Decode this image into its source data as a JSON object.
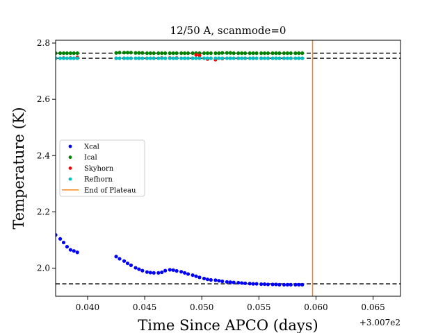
{
  "chart_data": {
    "type": "scatter",
    "title": "12/50 A, scanmode=0",
    "xlabel": "Time Since APCO (days)",
    "ylabel": "Temperature (K)",
    "x_offset_label": "+3.007e2",
    "xlim": [
      0.0372,
      0.0674
    ],
    "ylim": [
      1.9,
      2.81
    ],
    "x_ticks": [
      0.04,
      0.045,
      0.05,
      0.055,
      0.06,
      0.065
    ],
    "x_tick_labels": [
      "0.040",
      "0.045",
      "0.050",
      "0.055",
      "0.060",
      "0.065"
    ],
    "y_ticks": [
      2.0,
      2.2,
      2.4,
      2.6,
      2.8
    ],
    "y_tick_labels": [
      "2.0",
      "2.2",
      "2.4",
      "2.6",
      "2.8"
    ],
    "grid": false,
    "legend_position": "center-left",
    "series": [
      {
        "name": "Xcal",
        "color": "#0000ff",
        "points": [
          [
            0.0372,
            2.118
          ],
          [
            0.0376,
            2.104
          ],
          [
            0.0379,
            2.091
          ],
          [
            0.0382,
            2.076
          ],
          [
            0.0385,
            2.065
          ],
          [
            0.0388,
            2.061
          ],
          [
            0.0391,
            2.056
          ],
          [
            0.0425,
            2.041
          ],
          [
            0.0428,
            2.033
          ],
          [
            0.0432,
            2.025
          ],
          [
            0.0435,
            2.017
          ],
          [
            0.0438,
            2.01
          ],
          [
            0.0442,
            2.001
          ],
          [
            0.0445,
            1.996
          ],
          [
            0.0448,
            1.991
          ],
          [
            0.0452,
            1.986
          ],
          [
            0.0455,
            1.984
          ],
          [
            0.0458,
            1.983
          ],
          [
            0.0462,
            1.983
          ],
          [
            0.0465,
            1.985
          ],
          [
            0.0468,
            1.991
          ],
          [
            0.0472,
            1.994
          ],
          [
            0.0475,
            1.993
          ],
          [
            0.0478,
            1.99
          ],
          [
            0.0482,
            1.987
          ],
          [
            0.0485,
            1.983
          ],
          [
            0.0488,
            1.979
          ],
          [
            0.0492,
            1.975
          ],
          [
            0.0495,
            1.971
          ],
          [
            0.0498,
            1.967
          ],
          [
            0.0502,
            1.963
          ],
          [
            0.0505,
            1.96
          ],
          [
            0.0508,
            1.958
          ],
          [
            0.0512,
            1.957
          ],
          [
            0.0515,
            1.955
          ],
          [
            0.0518,
            1.953
          ],
          [
            0.0522,
            1.951
          ],
          [
            0.0525,
            1.95
          ],
          [
            0.0528,
            1.949
          ],
          [
            0.0532,
            1.948
          ],
          [
            0.0535,
            1.947
          ],
          [
            0.0538,
            1.946
          ],
          [
            0.0542,
            1.945
          ],
          [
            0.0545,
            1.944
          ],
          [
            0.0548,
            1.944
          ],
          [
            0.0552,
            1.943
          ],
          [
            0.0555,
            1.943
          ],
          [
            0.0558,
            1.942
          ],
          [
            0.0562,
            1.942
          ],
          [
            0.0565,
            1.942
          ],
          [
            0.0568,
            1.941
          ],
          [
            0.0572,
            1.941
          ],
          [
            0.0575,
            1.941
          ],
          [
            0.0578,
            1.941
          ],
          [
            0.0582,
            1.941
          ],
          [
            0.0585,
            1.941
          ],
          [
            0.0588,
            1.941
          ]
        ]
      },
      {
        "name": "Ical",
        "color": "#008000",
        "points": [
          [
            0.0372,
            2.764
          ],
          [
            0.0376,
            2.764
          ],
          [
            0.0379,
            2.764
          ],
          [
            0.0382,
            2.764
          ],
          [
            0.0385,
            2.764
          ],
          [
            0.0388,
            2.764
          ],
          [
            0.0391,
            2.764
          ],
          [
            0.0425,
            2.765
          ],
          [
            0.0428,
            2.766
          ],
          [
            0.0432,
            2.766
          ],
          [
            0.0435,
            2.766
          ],
          [
            0.0438,
            2.766
          ],
          [
            0.0442,
            2.765
          ],
          [
            0.0445,
            2.765
          ],
          [
            0.0448,
            2.765
          ],
          [
            0.0452,
            2.764
          ],
          [
            0.0455,
            2.764
          ],
          [
            0.0458,
            2.764
          ],
          [
            0.0462,
            2.764
          ],
          [
            0.0465,
            2.764
          ],
          [
            0.0468,
            2.764
          ],
          [
            0.0472,
            2.764
          ],
          [
            0.0475,
            2.764
          ],
          [
            0.0478,
            2.764
          ],
          [
            0.0482,
            2.764
          ],
          [
            0.0485,
            2.764
          ],
          [
            0.0488,
            2.764
          ],
          [
            0.0492,
            2.764
          ],
          [
            0.0495,
            2.764
          ],
          [
            0.0498,
            2.764
          ],
          [
            0.0502,
            2.764
          ],
          [
            0.0505,
            2.764
          ],
          [
            0.0508,
            2.764
          ],
          [
            0.0512,
            2.764
          ],
          [
            0.0515,
            2.764
          ],
          [
            0.0518,
            2.765
          ],
          [
            0.0522,
            2.765
          ],
          [
            0.0525,
            2.765
          ],
          [
            0.0528,
            2.764
          ],
          [
            0.0532,
            2.764
          ],
          [
            0.0535,
            2.764
          ],
          [
            0.0538,
            2.764
          ],
          [
            0.0542,
            2.764
          ],
          [
            0.0545,
            2.764
          ],
          [
            0.0548,
            2.764
          ],
          [
            0.0552,
            2.764
          ],
          [
            0.0555,
            2.764
          ],
          [
            0.0558,
            2.764
          ],
          [
            0.0562,
            2.764
          ],
          [
            0.0565,
            2.764
          ],
          [
            0.0568,
            2.764
          ],
          [
            0.0572,
            2.764
          ],
          [
            0.0575,
            2.764
          ],
          [
            0.0578,
            2.764
          ],
          [
            0.0582,
            2.764
          ],
          [
            0.0585,
            2.764
          ],
          [
            0.0588,
            2.764
          ]
        ]
      },
      {
        "name": "Skyhorn",
        "color": "#ff0000",
        "points": [
          [
            0.0372,
            2.746
          ],
          [
            0.0379,
            2.747
          ],
          [
            0.0385,
            2.747
          ],
          [
            0.0391,
            2.749
          ],
          [
            0.0425,
            2.746
          ],
          [
            0.0432,
            2.746
          ],
          [
            0.0438,
            2.746
          ],
          [
            0.0445,
            2.746
          ],
          [
            0.0452,
            2.746
          ],
          [
            0.0458,
            2.746
          ],
          [
            0.0465,
            2.747
          ],
          [
            0.0472,
            2.747
          ],
          [
            0.0478,
            2.747
          ],
          [
            0.0485,
            2.746
          ],
          [
            0.0492,
            2.746
          ],
          [
            0.0495,
            2.758
          ],
          [
            0.0498,
            2.756
          ],
          [
            0.0505,
            2.743
          ],
          [
            0.0512,
            2.741
          ],
          [
            0.0518,
            2.745
          ],
          [
            0.0525,
            2.746
          ],
          [
            0.0532,
            2.746
          ],
          [
            0.0538,
            2.746
          ],
          [
            0.0545,
            2.746
          ],
          [
            0.0552,
            2.746
          ],
          [
            0.0558,
            2.746
          ],
          [
            0.0565,
            2.746
          ],
          [
            0.0572,
            2.746
          ],
          [
            0.0578,
            2.746
          ],
          [
            0.0585,
            2.746
          ]
        ]
      },
      {
        "name": "Refhorn",
        "color": "#00bfbf",
        "points": [
          [
            0.0372,
            2.746
          ],
          [
            0.0376,
            2.746
          ],
          [
            0.0379,
            2.746
          ],
          [
            0.0382,
            2.746
          ],
          [
            0.0385,
            2.746
          ],
          [
            0.0388,
            2.746
          ],
          [
            0.0391,
            2.746
          ],
          [
            0.0425,
            2.746
          ],
          [
            0.0428,
            2.746
          ],
          [
            0.0432,
            2.746
          ],
          [
            0.0435,
            2.746
          ],
          [
            0.0438,
            2.746
          ],
          [
            0.0442,
            2.746
          ],
          [
            0.0445,
            2.746
          ],
          [
            0.0448,
            2.746
          ],
          [
            0.0452,
            2.746
          ],
          [
            0.0455,
            2.746
          ],
          [
            0.0458,
            2.746
          ],
          [
            0.0462,
            2.746
          ],
          [
            0.0465,
            2.746
          ],
          [
            0.0468,
            2.746
          ],
          [
            0.0472,
            2.746
          ],
          [
            0.0475,
            2.746
          ],
          [
            0.0478,
            2.746
          ],
          [
            0.0482,
            2.746
          ],
          [
            0.0485,
            2.746
          ],
          [
            0.0488,
            2.746
          ],
          [
            0.0492,
            2.746
          ],
          [
            0.0495,
            2.746
          ],
          [
            0.0498,
            2.746
          ],
          [
            0.0502,
            2.746
          ],
          [
            0.0505,
            2.746
          ],
          [
            0.0508,
            2.746
          ],
          [
            0.0512,
            2.746
          ],
          [
            0.0515,
            2.746
          ],
          [
            0.0518,
            2.746
          ],
          [
            0.0522,
            2.746
          ],
          [
            0.0525,
            2.746
          ],
          [
            0.0528,
            2.746
          ],
          [
            0.0532,
            2.746
          ],
          [
            0.0535,
            2.746
          ],
          [
            0.0538,
            2.746
          ],
          [
            0.0542,
            2.746
          ],
          [
            0.0545,
            2.746
          ],
          [
            0.0548,
            2.746
          ],
          [
            0.0552,
            2.746
          ],
          [
            0.0555,
            2.746
          ],
          [
            0.0558,
            2.746
          ],
          [
            0.0562,
            2.746
          ],
          [
            0.0565,
            2.746
          ],
          [
            0.0568,
            2.746
          ],
          [
            0.0572,
            2.746
          ],
          [
            0.0575,
            2.746
          ],
          [
            0.0578,
            2.746
          ],
          [
            0.0582,
            2.746
          ],
          [
            0.0585,
            2.746
          ],
          [
            0.0588,
            2.746
          ]
        ]
      }
    ],
    "reference_lines": [
      {
        "orientation": "horizontal",
        "value": 2.764,
        "color": "#000000",
        "style": "dashed"
      },
      {
        "orientation": "horizontal",
        "value": 2.746,
        "color": "#000000",
        "style": "dashed"
      },
      {
        "orientation": "horizontal",
        "value": 1.944,
        "color": "#000000",
        "style": "dashed"
      }
    ],
    "vline": {
      "name": "End of Plateau",
      "x": 0.0597,
      "color": "#ff7f0e"
    }
  }
}
